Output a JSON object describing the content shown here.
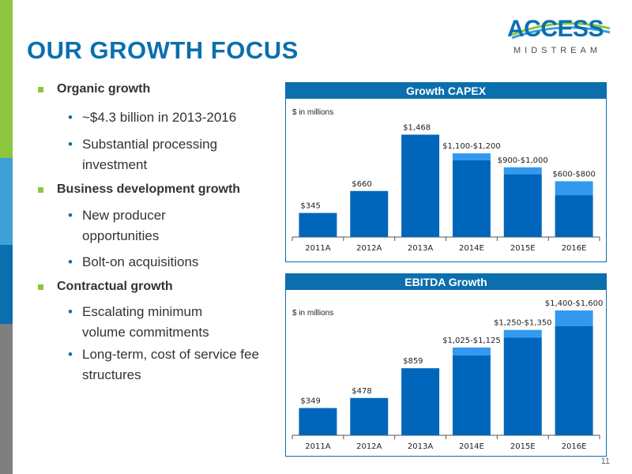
{
  "slide": {
    "title": "OUR GROWTH FOCUS",
    "page_number": "11"
  },
  "logo": {
    "name": "ACCESS",
    "sub": "MIDSTREAM"
  },
  "colors": {
    "primary_blue": "#0b6fae",
    "bar_blue": "#0066bb",
    "range_blue": "#3399ee",
    "green": "#8cc63f",
    "sidebar": [
      "#8cc63f",
      "#3da0d6",
      "#0b6fae",
      "#7f7f7f"
    ]
  },
  "bullets": [
    {
      "level": 1,
      "text": "Organic growth"
    },
    {
      "level": 2,
      "text": "~$4.3 billion in 2013-2016"
    },
    {
      "level": 2,
      "text": "Substantial processing investment"
    },
    {
      "level": 1,
      "text": "Business development growth"
    },
    {
      "level": 2,
      "text": "New producer opportunities"
    },
    {
      "level": 2,
      "text": "Bolt-on acquisitions"
    },
    {
      "level": 1,
      "text": "Contractual growth"
    },
    {
      "level": 2,
      "text": "Escalating minimum volume commitments"
    },
    {
      "level": 2,
      "text": "Long-term, cost of service fee structures"
    }
  ],
  "chart_data": [
    {
      "type": "bar",
      "title": "Growth CAPEX",
      "unit_note": "$ in millions",
      "categories": [
        "2011A",
        "2012A",
        "2013A",
        "2014E",
        "2015E",
        "2016E"
      ],
      "low": [
        345,
        660,
        1468,
        1100,
        900,
        600
      ],
      "high": [
        345,
        660,
        1468,
        1200,
        1000,
        800
      ],
      "labels": [
        "$345",
        "$660",
        "$1,468",
        "$1,100-$1,200",
        "$900-$1,000",
        "$600-$800"
      ],
      "ylim": [
        0,
        1700
      ],
      "grid": false
    },
    {
      "type": "bar",
      "title": "EBITDA Growth",
      "unit_note": "$ in millions",
      "categories": [
        "2011A",
        "2012A",
        "2013A",
        "2014E",
        "2015E",
        "2016E"
      ],
      "low": [
        349,
        478,
        859,
        1025,
        1250,
        1400
      ],
      "high": [
        349,
        478,
        859,
        1125,
        1350,
        1600
      ],
      "labels": [
        "$349",
        "$478",
        "$859",
        "$1,025-$1,125",
        "$1,250-$1,350",
        "$1,400-$1,600"
      ],
      "ylim": [
        0,
        1650
      ],
      "grid": false
    }
  ]
}
